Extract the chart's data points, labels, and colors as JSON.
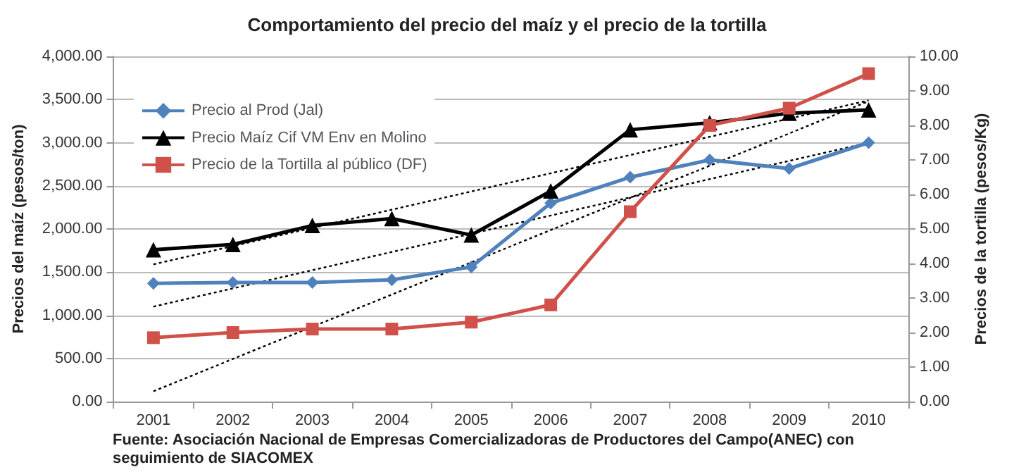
{
  "chart_data": {
    "type": "line",
    "title": "Comportamiento del precio del maíz y el precio de la tortilla",
    "ylabel": "Precios del maíz (pesos/ton)",
    "y2label": "Precios de la tortilla (pesos/Kg)",
    "categories": [
      "2001",
      "2002",
      "2003",
      "2004",
      "2005",
      "2006",
      "2007",
      "2008",
      "2009",
      "2010"
    ],
    "series": [
      {
        "name": "Precio al Prod (Jal)",
        "color": "#4f81bd",
        "marker": "diamond",
        "values": [
          1370,
          1380,
          1380,
          1410,
          1560,
          2300,
          2600,
          2800,
          2700,
          3000
        ]
      },
      {
        "name": "Precio Maíz Cif VM Env en Molino",
        "color": "#000000",
        "marker": "triangle",
        "values": [
          1760,
          1820,
          2040,
          2120,
          1930,
          2440,
          3150,
          3230,
          3340,
          3380
        ]
      },
      {
        "name": "Precio de la Tortilla al público (DF)",
        "color": "#d0504a",
        "marker": "square",
        "axis": "y2",
        "values": [
          1.85,
          2.0,
          2.1,
          2.1,
          2.3,
          2.8,
          5.5,
          8.0,
          8.5,
          9.5
        ]
      },
      {
        "type": "line",
        "color": "#000000",
        "line_style": "dotted",
        "marker": "none",
        "values": [
          1100,
          null,
          null,
          null,
          null,
          null,
          null,
          null,
          null,
          3000
        ]
      },
      {
        "type": "line",
        "color": "#000000",
        "line_style": "dotted",
        "marker": "none",
        "values": [
          1590,
          null,
          null,
          null,
          null,
          null,
          null,
          null,
          null,
          3490
        ]
      },
      {
        "type": "line",
        "color": "#000000",
        "line_style": "dotted",
        "marker": "none",
        "axis": "y2",
        "values": [
          0.3,
          null,
          null,
          null,
          null,
          null,
          null,
          null,
          null,
          8.7
        ]
      }
    ],
    "ylim": [
      0,
      4000
    ],
    "yticks": [
      {
        "value": 0,
        "label": "0.00"
      },
      {
        "value": 500,
        "label": "500.00"
      },
      {
        "value": 1000,
        "label": "1,000.00"
      },
      {
        "value": 1500,
        "label": "1,500.00"
      },
      {
        "value": 2000,
        "label": "2,000.00"
      },
      {
        "value": 2500,
        "label": "2,500.00"
      },
      {
        "value": 3000,
        "label": "3,000.00"
      },
      {
        "value": 3500,
        "label": "3,500.00"
      },
      {
        "value": 4000,
        "label": "4,000.00"
      }
    ],
    "y2lim": [
      0,
      10
    ],
    "y2ticks": [
      {
        "value": 0,
        "label": "0.00"
      },
      {
        "value": 1,
        "label": "1.00"
      },
      {
        "value": 2,
        "label": "2.00"
      },
      {
        "value": 3,
        "label": "3.00"
      },
      {
        "value": 4,
        "label": "4.00"
      },
      {
        "value": 5,
        "label": "5.00"
      },
      {
        "value": 6,
        "label": "6.00"
      },
      {
        "value": 7,
        "label": "7.00"
      },
      {
        "value": 8,
        "label": "8.00"
      },
      {
        "value": 9,
        "label": "9.00"
      },
      {
        "value": 10,
        "label": "10.00"
      }
    ],
    "grid": "y",
    "legend": "top left",
    "line_style": "solid",
    "annotations": [
      "Fuente: Asociación Nacional de Empresas Comercializadoras de Productores del Campo(ANEC) con seguimiento de SIACOMEX"
    ]
  }
}
